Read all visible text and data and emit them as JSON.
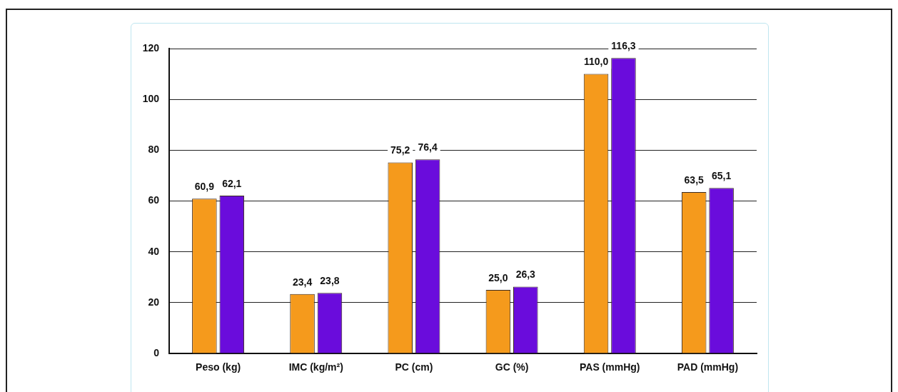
{
  "chart_data": {
    "type": "bar",
    "categories": [
      "Peso (kg)",
      "IMC (kg/m²)",
      "PC (cm)",
      "GC (%)",
      "PAS (mmHg)",
      "PAD (mmHg)"
    ],
    "series": [
      {
        "color": "#f59a1c",
        "values": [
          60.9,
          23.4,
          75.2,
          25.0,
          110.0,
          63.5
        ],
        "value_labels": [
          "60,9",
          "23,4",
          "75,2",
          "25,0",
          "110,0",
          "63,5"
        ]
      },
      {
        "color": "#6a0cdc",
        "values": [
          62.1,
          23.8,
          76.4,
          26.3,
          116.3,
          65.1
        ],
        "value_labels": [
          "62,1",
          "23,8",
          "76,4",
          "26,3",
          "116,3",
          "65,1"
        ]
      }
    ],
    "ylim": [
      0,
      120
    ],
    "yticks": [
      0,
      20,
      40,
      60,
      80,
      100,
      120
    ],
    "grid": "y",
    "legend": false
  }
}
